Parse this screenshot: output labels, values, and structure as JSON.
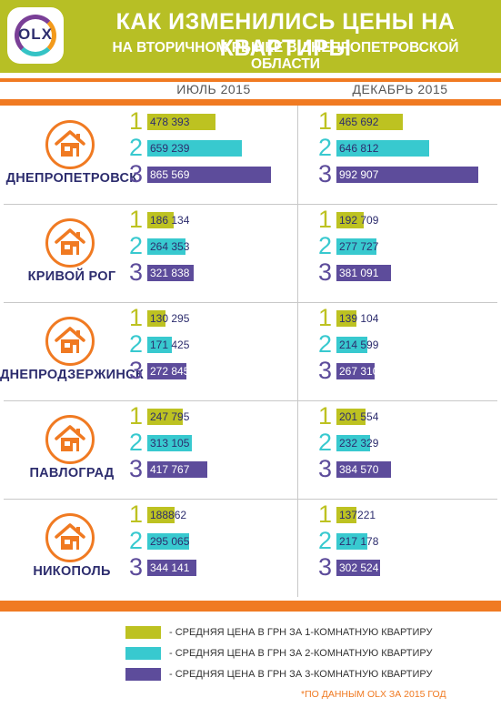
{
  "title": "КАК ИЗМЕНИЛИСЬ ЦЕНЫ НА КВАРТИРЫ",
  "subtitle": "НА ВТОРИЧНОМ РЫНКЕ В ДНЕПРОПЕТРОВСКОЙ ОБЛАСТИ",
  "logo_text": "OLX",
  "source": "*ПО ДАННЫМ OLX ЗА 2015 ГОД",
  "colors": {
    "header": "#b7bf25",
    "accent": "#f07a22",
    "one_room": "#bdc221",
    "two_room": "#38c9cf",
    "three_room": "#5d4c9b",
    "dark_text": "#2d2d6e"
  },
  "chart_data": {
    "type": "bar",
    "periods": [
      "ИЮЛЬ 2015",
      "ДЕКАБРЬ 2015"
    ],
    "room_labels": [
      "1",
      "2",
      "3"
    ],
    "legend": [
      {
        "key": "one_room",
        "label": "- СРЕДНЯЯ ЦЕНА В ГРН ЗА 1-КОМНАТНУЮ КВАРТИРУ"
      },
      {
        "key": "two_room",
        "label": "- СРЕДНЯЯ ЦЕНА В ГРН ЗА 2-КОМНАТНУЮ КВАРТИРУ"
      },
      {
        "key": "three_room",
        "label": "- СРЕДНЯЯ ЦЕНА В ГРН ЗА 3-КОМНАТНУЮ КВАРТИРУ"
      }
    ],
    "cities": [
      {
        "name": "ДНЕПРОПЕТРОВСК",
        "july": [
          {
            "value": 478393,
            "label": "478 393"
          },
          {
            "value": 659239,
            "label": "659 239"
          },
          {
            "value": 865569,
            "label": "865 569"
          }
        ],
        "december": [
          {
            "value": 465692,
            "label": "465 692"
          },
          {
            "value": 646812,
            "label": "646 812"
          },
          {
            "value": 992907,
            "label": "992 907"
          }
        ]
      },
      {
        "name": "КРИВОЙ РОГ",
        "july": [
          {
            "value": 186134,
            "label": "186 134"
          },
          {
            "value": 264353,
            "label": "264 353"
          },
          {
            "value": 321838,
            "label": "321 838"
          }
        ],
        "december": [
          {
            "value": 192709,
            "label": "192 709"
          },
          {
            "value": 277727,
            "label": "277 727"
          },
          {
            "value": 381091,
            "label": "381 091"
          }
        ]
      },
      {
        "name": "ДНЕПРОДЗЕРЖИНСК",
        "july": [
          {
            "value": 130295,
            "label": "130 295"
          },
          {
            "value": 171425,
            "label": "171 425"
          },
          {
            "value": 272845,
            "label": "272 845"
          }
        ],
        "december": [
          {
            "value": 139104,
            "label": "139 104"
          },
          {
            "value": 214599,
            "label": "214 599"
          },
          {
            "value": 267310,
            "label": "267 310"
          }
        ]
      },
      {
        "name": "ПАВЛОГРАД",
        "july": [
          {
            "value": 247795,
            "label": "247 795"
          },
          {
            "value": 313105,
            "label": "313 105"
          },
          {
            "value": 417767,
            "label": "417 767"
          }
        ],
        "december": [
          {
            "value": 201554,
            "label": "201 554"
          },
          {
            "value": 232329,
            "label": "232 329"
          },
          {
            "value": 384570,
            "label": "384 570"
          }
        ]
      },
      {
        "name": "НИКОПОЛЬ",
        "july": [
          {
            "value": 188862,
            "label": "188862"
          },
          {
            "value": 295065,
            "label": "295 065"
          },
          {
            "value": 344141,
            "label": "344 141"
          }
        ],
        "december": [
          {
            "value": 137221,
            "label": "137221"
          },
          {
            "value": 217178,
            "label": "217 178"
          },
          {
            "value": 302524,
            "label": "302 524"
          }
        ]
      }
    ]
  }
}
